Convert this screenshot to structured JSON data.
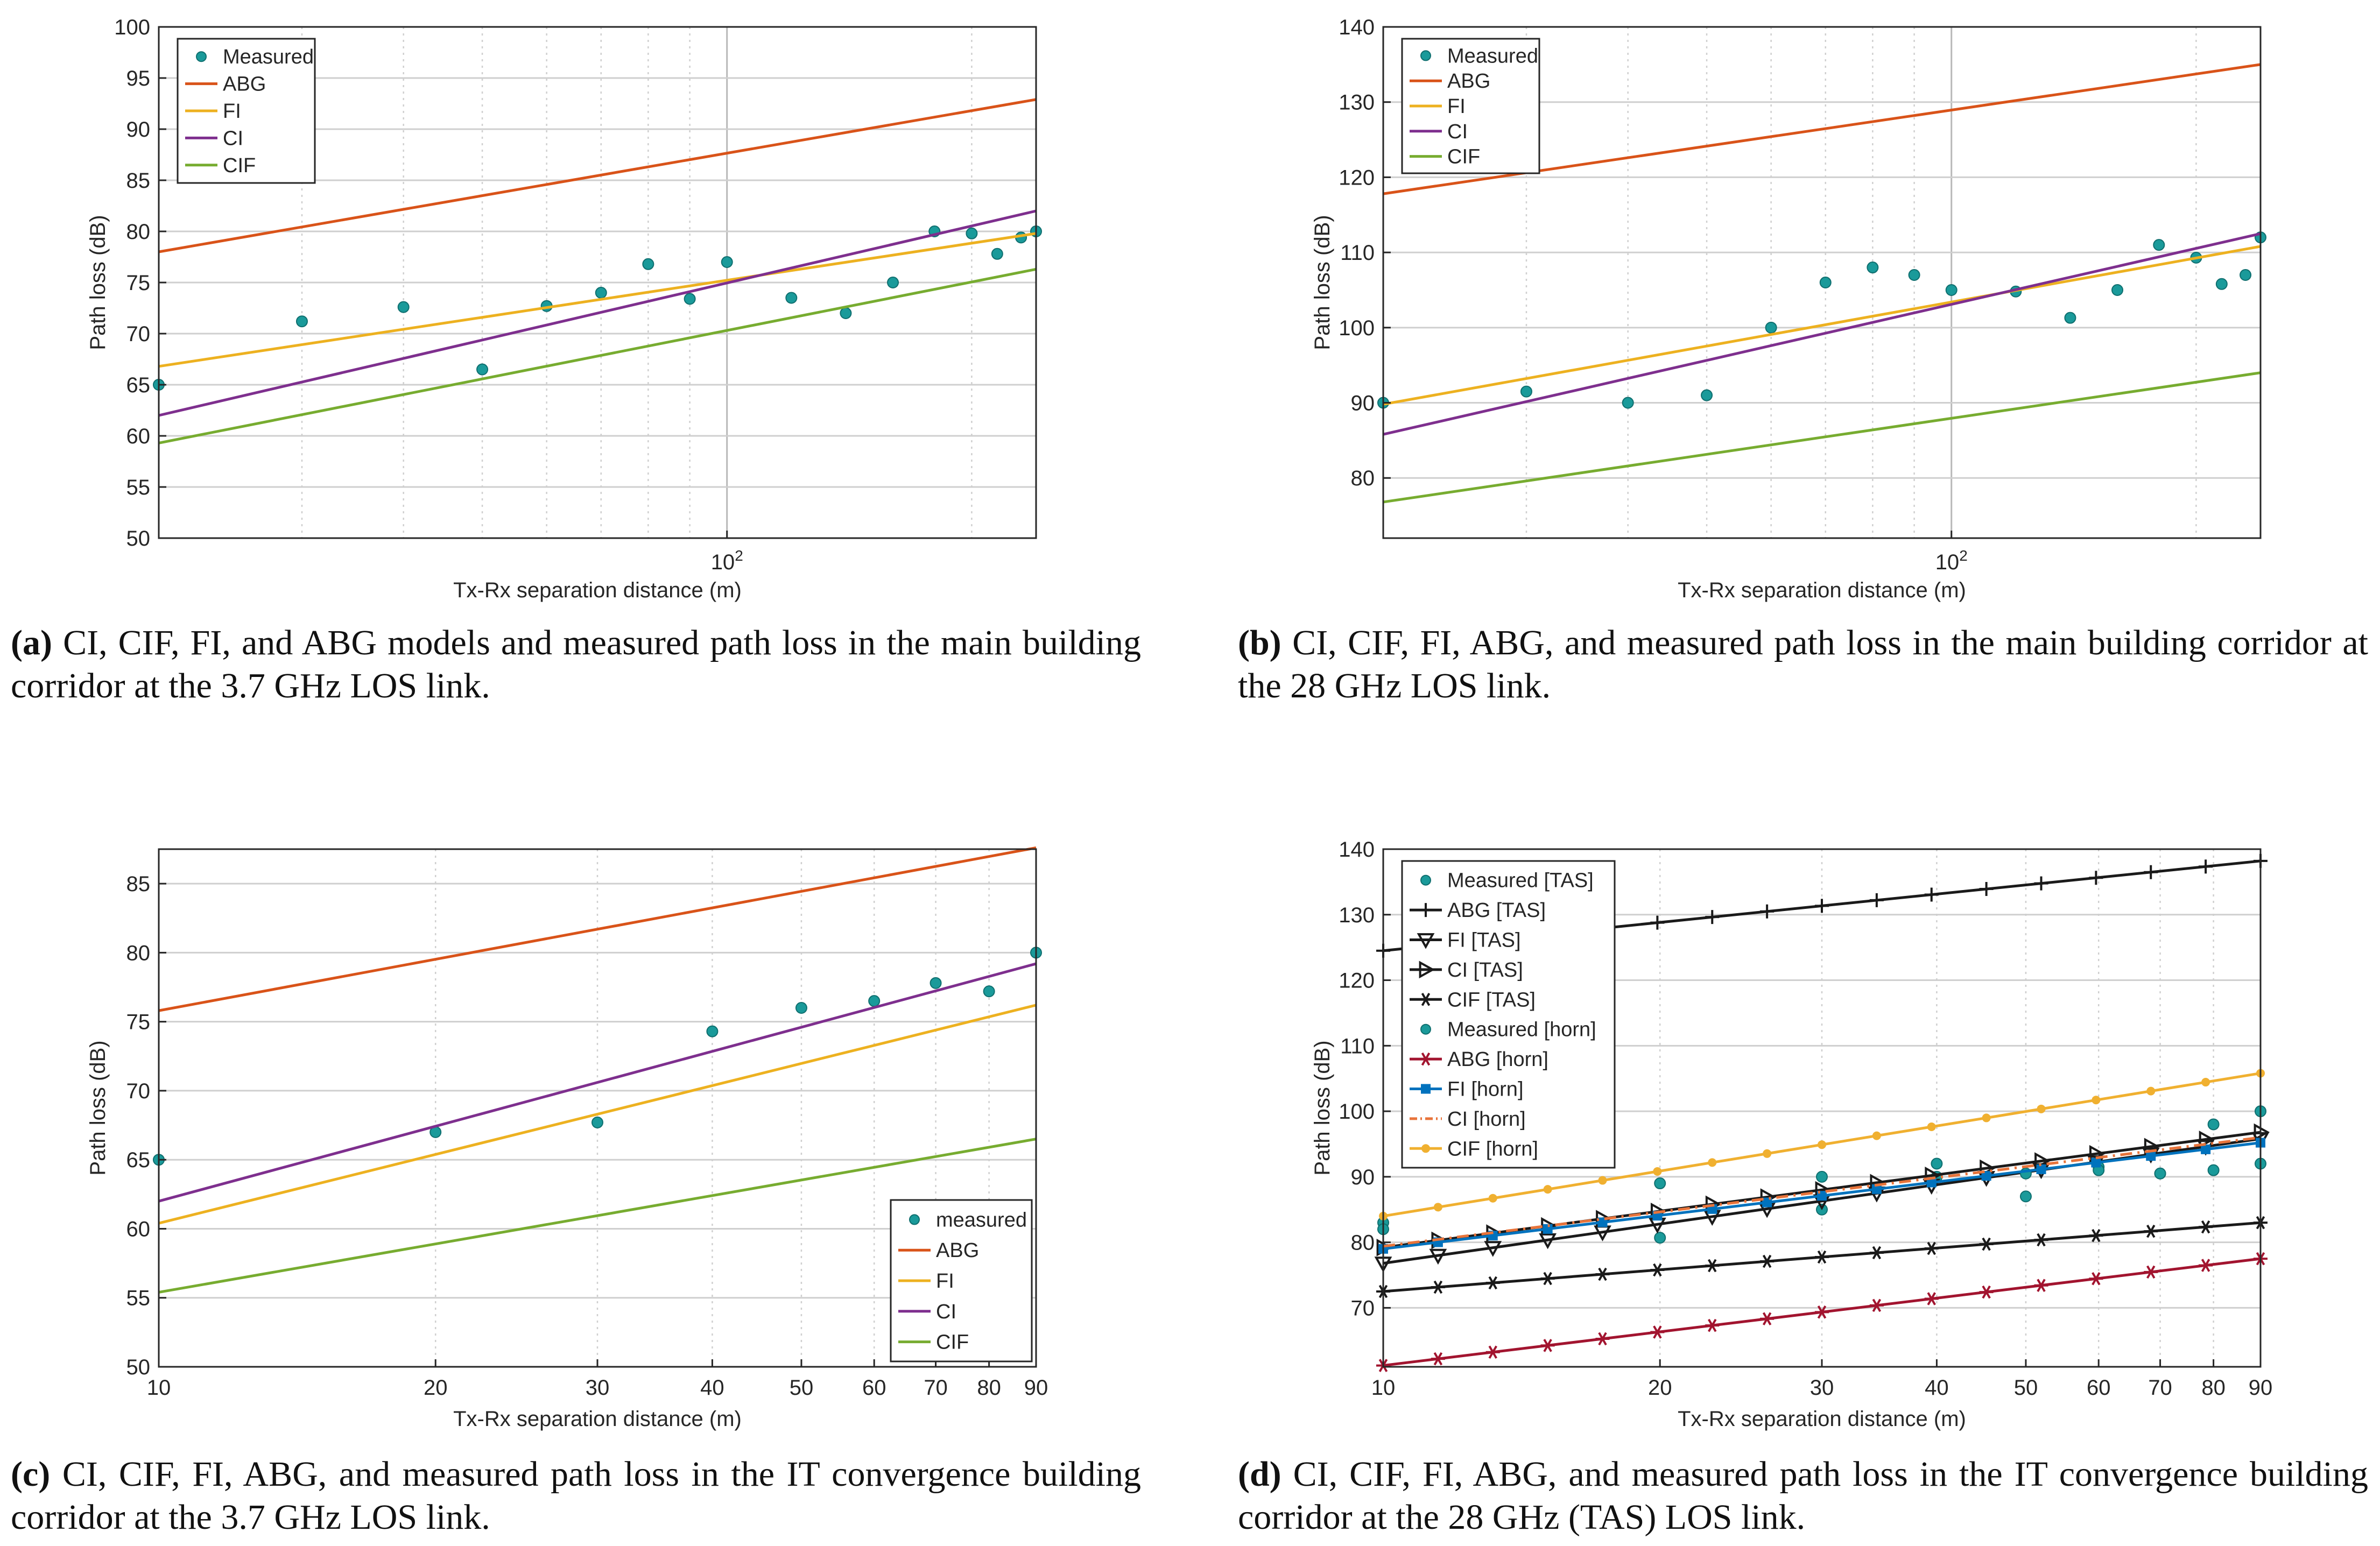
{
  "colors": {
    "measured": "#1a9a9a",
    "abg": "#d95319",
    "fi": "#edb120",
    "ci": "#7e2f8e",
    "cif": "#77ac30",
    "grid": "#c8c8c8",
    "black": "#1a1a1a",
    "abg_horn": "#a2142f",
    "fi_horn": "#0072bd",
    "ci_horn": "#e8743b",
    "cif_horn": "#f0b030"
  },
  "captions": [
    {
      "label": "(a)",
      "text": "CI, CIF, FI, and ABG models and measured path loss in the main building corridor at the 3.7 GHz LOS link."
    },
    {
      "label": "(b)",
      "text": "CI, CIF, FI, ABG, and measured path loss in the main building corridor at the 28 GHz LOS link."
    },
    {
      "label": "(c)",
      "text": "CI, CIF, FI, ABG, and measured path loss in the IT convergence building corridor at the 3.7 GHz LOS link."
    },
    {
      "label": "(d)",
      "text": "CI, CIF, FI, ABG, and measured path loss in the IT convergence building corridor at the 28 GHz (TAS) LOS link."
    }
  ],
  "chart_data": [
    {
      "type": "line",
      "title": "",
      "xlabel": "Tx-Rx separation distance (m)",
      "ylabel": "Path loss (dB)",
      "xscale": "log",
      "xlim": [
        20,
        240
      ],
      "ylim": [
        50,
        100
      ],
      "yticks": [
        50,
        55,
        60,
        65,
        70,
        75,
        80,
        85,
        90,
        95,
        100
      ],
      "xtick_labels": [
        {
          "value": 100,
          "base": "10",
          "exp": "2"
        }
      ],
      "grid": true,
      "legend": "top-left",
      "series": [
        {
          "name": "Measured",
          "kind": "scatter",
          "color_key": "measured",
          "x": [
            20,
            30,
            40,
            50,
            60,
            70,
            80,
            90,
            100,
            120,
            140,
            160,
            180,
            200,
            215,
            230,
            240
          ],
          "y": [
            65,
            71.2,
            72.6,
            66.5,
            72.7,
            74,
            76.8,
            73.4,
            77,
            73.5,
            72,
            75,
            80,
            79.8,
            77.8,
            79.4,
            80
          ]
        },
        {
          "name": "ABG",
          "kind": "line",
          "color_key": "abg",
          "x": [
            20,
            240
          ],
          "y": [
            78,
            92.9
          ]
        },
        {
          "name": "FI",
          "kind": "line",
          "color_key": "fi",
          "x": [
            20,
            240
          ],
          "y": [
            66.8,
            79.8
          ]
        },
        {
          "name": "CI",
          "kind": "line",
          "color_key": "ci",
          "x": [
            20,
            240
          ],
          "y": [
            62,
            82
          ]
        },
        {
          "name": "CIF",
          "kind": "line",
          "color_key": "cif",
          "x": [
            20,
            240
          ],
          "y": [
            59.3,
            76.3
          ]
        }
      ]
    },
    {
      "type": "line",
      "title": "",
      "xlabel": "Tx-Rx separation distance (m)",
      "ylabel": "Path loss (dB)",
      "xscale": "log",
      "xlim": [
        20,
        240
      ],
      "ylim": [
        72,
        140
      ],
      "yticks": [
        80,
        90,
        100,
        110,
        120,
        130,
        140
      ],
      "xtick_labels": [
        {
          "value": 100,
          "base": "10",
          "exp": "2"
        }
      ],
      "grid": true,
      "legend": "top-left",
      "series": [
        {
          "name": "Measured",
          "kind": "scatter",
          "color_key": "measured",
          "x": [
            20,
            30,
            40,
            50,
            60,
            70,
            80,
            90,
            100,
            120,
            140,
            160,
            180,
            200,
            215,
            230,
            240
          ],
          "y": [
            90,
            91.5,
            90,
            91,
            100,
            106,
            108,
            107,
            105,
            104.8,
            101.3,
            105,
            111,
            109.3,
            105.8,
            107,
            112
          ]
        },
        {
          "name": "ABG",
          "kind": "line",
          "color_key": "abg",
          "x": [
            20,
            240
          ],
          "y": [
            117.8,
            135
          ]
        },
        {
          "name": "FI",
          "kind": "line",
          "color_key": "fi",
          "x": [
            20,
            240
          ],
          "y": [
            89.8,
            110.8
          ]
        },
        {
          "name": "CI",
          "kind": "line",
          "color_key": "ci",
          "x": [
            20,
            240
          ],
          "y": [
            85.8,
            112.5
          ]
        },
        {
          "name": "CIF",
          "kind": "line",
          "color_key": "cif",
          "x": [
            20,
            240
          ],
          "y": [
            76.8,
            94
          ]
        }
      ]
    },
    {
      "type": "line",
      "title": "",
      "xlabel": "Tx-Rx separation distance (m)",
      "ylabel": "Path loss (dB)",
      "xscale": "log",
      "xlim": [
        10,
        90
      ],
      "ylim": [
        50,
        87.5
      ],
      "yticks": [
        50,
        55,
        60,
        65,
        70,
        75,
        80,
        85
      ],
      "xticks": [
        10,
        20,
        30,
        40,
        50,
        60,
        70,
        80,
        90
      ],
      "grid": true,
      "legend": "bottom-right",
      "series": [
        {
          "name": "measured",
          "kind": "scatter",
          "color_key": "measured",
          "x": [
            10,
            20,
            30,
            40,
            50,
            60,
            70,
            80,
            90
          ],
          "y": [
            65,
            67,
            67.7,
            74.3,
            76,
            76.5,
            77.8,
            77.2,
            80
          ]
        },
        {
          "name": "ABG",
          "kind": "line",
          "color_key": "abg",
          "x": [
            10,
            90
          ],
          "y": [
            75.8,
            87.6
          ]
        },
        {
          "name": "FI",
          "kind": "line",
          "color_key": "fi",
          "x": [
            10,
            90
          ],
          "y": [
            60.4,
            76.2
          ]
        },
        {
          "name": "CI",
          "kind": "line",
          "color_key": "ci",
          "x": [
            10,
            90
          ],
          "y": [
            62,
            79.2
          ]
        },
        {
          "name": "CIF",
          "kind": "line",
          "color_key": "cif",
          "x": [
            10,
            90
          ],
          "y": [
            55.4,
            66.5
          ]
        }
      ]
    },
    {
      "type": "line",
      "title": "",
      "xlabel": "Tx-Rx separation distance (m)",
      "ylabel": "Path loss (dB)",
      "xscale": "log",
      "xlim": [
        10,
        90
      ],
      "ylim": [
        61,
        140
      ],
      "yticks": [
        70,
        80,
        90,
        100,
        110,
        120,
        130,
        140
      ],
      "xticks": [
        10,
        20,
        30,
        40,
        50,
        60,
        70,
        80,
        90
      ],
      "grid": true,
      "legend": "top-left",
      "series": [
        {
          "name": "Measured [TAS]",
          "kind": "scatter",
          "color_key": "measured",
          "x": [
            10,
            20,
            30,
            40,
            50,
            60,
            70,
            80,
            90
          ],
          "y": [
            83,
            80.7,
            85,
            90,
            87,
            91.5,
            90.5,
            98,
            100
          ]
        },
        {
          "name": "ABG [TAS]",
          "kind": "line",
          "marker": "plus",
          "color_key": "black",
          "x": [
            10,
            90
          ],
          "y": [
            124.5,
            138.2
          ]
        },
        {
          "name": "FI [TAS]",
          "kind": "line",
          "marker": "tri-down",
          "color_key": "black",
          "x": [
            10,
            90
          ],
          "y": [
            76.8,
            95.8
          ]
        },
        {
          "name": "CI [TAS]",
          "kind": "line",
          "marker": "tri-right",
          "color_key": "black",
          "x": [
            10,
            90
          ],
          "y": [
            79.2,
            96.8
          ]
        },
        {
          "name": "CIF [TAS]",
          "kind": "line",
          "marker": "star",
          "color_key": "black",
          "x": [
            10,
            90
          ],
          "y": [
            72.5,
            83
          ]
        },
        {
          "name": "Measured [horn]",
          "kind": "scatter",
          "color_key": "measured",
          "x": [
            10,
            20,
            30,
            40,
            50,
            60,
            70,
            80,
            90
          ],
          "y": [
            82,
            89,
            90,
            92,
            90.5,
            91,
            90.5,
            91,
            92
          ]
        },
        {
          "name": "ABG [horn]",
          "kind": "line",
          "marker": "asterisk",
          "color_key": "abg_horn",
          "x": [
            10,
            90
          ],
          "y": [
            61.2,
            77.5
          ]
        },
        {
          "name": "FI [horn]",
          "kind": "line",
          "marker": "square",
          "color_key": "fi_horn",
          "x": [
            10,
            90
          ],
          "y": [
            79,
            95.2
          ]
        },
        {
          "name": "CI [horn]",
          "kind": "line",
          "marker": "dashdot",
          "color_key": "ci_horn",
          "x": [
            10,
            90
          ],
          "y": [
            79.4,
            96
          ]
        },
        {
          "name": "CIF [horn]",
          "kind": "line",
          "marker": "dot",
          "color_key": "cif_horn",
          "x": [
            10,
            90
          ],
          "y": [
            84,
            105.8
          ]
        }
      ]
    }
  ]
}
